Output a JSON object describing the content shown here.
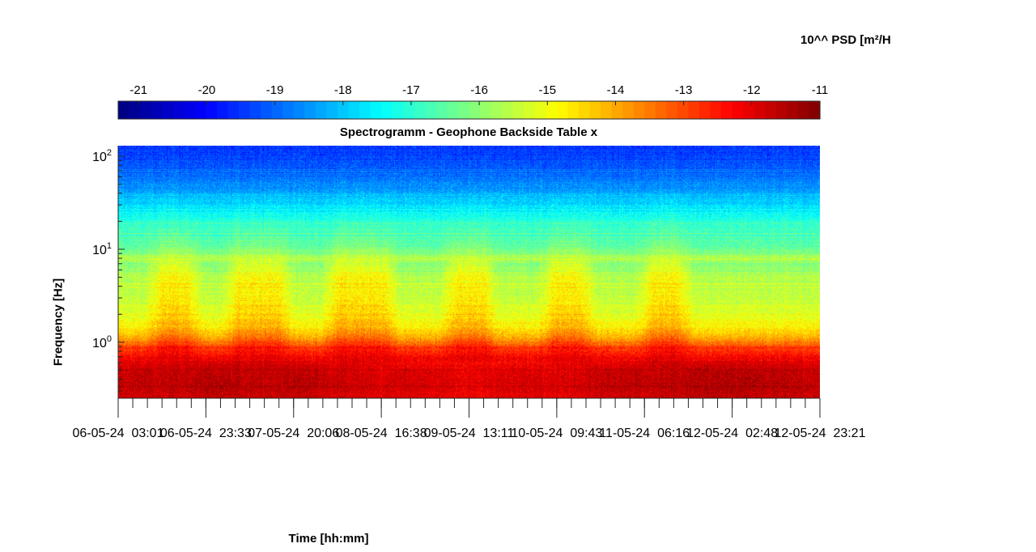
{
  "chart_data": {
    "type": "heatmap",
    "title": "Spectrogramm - Geophone Backside Table x",
    "xlabel": "Time [hh:mm]",
    "ylabel": "Frequency [Hz]",
    "y_scale": "log",
    "ylim_hz": [
      0.25,
      130
    ],
    "y_tick_labels": [
      {
        "base": "10",
        "exp": "2"
      },
      {
        "base": "10",
        "exp": "1"
      },
      {
        "base": "10",
        "exp": "0"
      }
    ],
    "y_tick_values": [
      100,
      10,
      1
    ],
    "x_tick_labels": [
      "06-05-24  03:01",
      "06-05-24  23:33",
      "07-05-24  20:06",
      "08-05-24  16:38",
      "09-05-24  13:11",
      "10-05-24  09:43",
      "11-05-24  06:16",
      "12-05-24  02:48",
      "12-05-24  23:21"
    ],
    "colorbar": {
      "title": "10^^ PSD [m²/H",
      "colormap": "jet",
      "range": [
        -21.3,
        -11
      ],
      "ticks": [
        "-21",
        "-20",
        "-19",
        "-18",
        "-17",
        "-16",
        "-15",
        "-14",
        "-13",
        "-12",
        "-11"
      ]
    },
    "profile": {
      "freq_hz": [
        0.25,
        0.35,
        0.5,
        0.7,
        0.9,
        1.1,
        1.5,
        2,
        3,
        5,
        7,
        8,
        10,
        15,
        20,
        30,
        50,
        80,
        130
      ],
      "log10_psd_night": [
        -11.9,
        -11.7,
        -11.8,
        -12.3,
        -13.0,
        -14.0,
        -14.8,
        -15.2,
        -15.4,
        -15.7,
        -16.1,
        -15.6,
        -16.4,
        -16.8,
        -17.0,
        -17.8,
        -18.6,
        -19.2,
        -19.5
      ],
      "log10_psd_day": [
        -12.0,
        -11.8,
        -11.9,
        -12.1,
        -12.5,
        -13.3,
        -14.1,
        -14.4,
        -14.6,
        -14.9,
        -15.3,
        -15.4,
        -16.0,
        -16.6,
        -16.9,
        -17.7,
        -18.6,
        -19.2,
        -19.5
      ]
    },
    "daytime_activity_periods": [
      [
        0.05,
        0.11
      ],
      [
        0.16,
        0.24
      ],
      [
        0.3,
        0.39
      ],
      [
        0.47,
        0.53
      ],
      [
        0.61,
        0.67
      ],
      [
        0.75,
        0.81
      ]
    ]
  }
}
